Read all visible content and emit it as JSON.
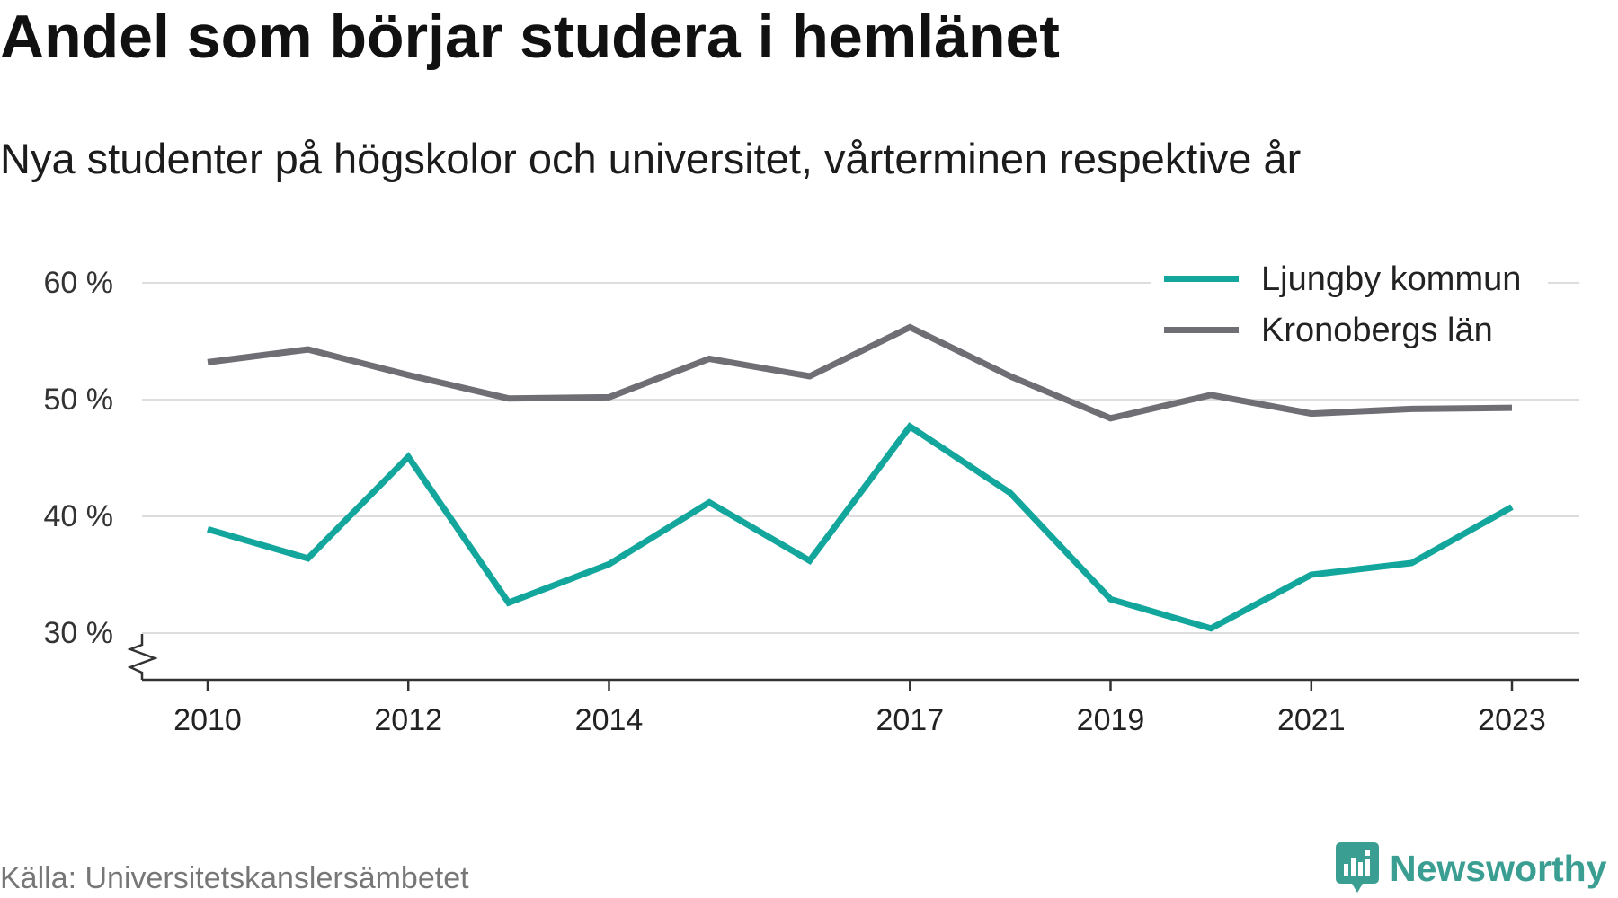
{
  "chart_data": {
    "type": "line",
    "title": "Andel som börjar studera i hemlänet",
    "subtitle": "Nya studenter på högskolor och universitet, vårterminen respektive år",
    "x": [
      2010,
      2011,
      2012,
      2013,
      2014,
      2015,
      2016,
      2017,
      2018,
      2019,
      2020,
      2021,
      2022,
      2023
    ],
    "x_ticks": [
      2010,
      2012,
      2014,
      2017,
      2019,
      2021,
      2023
    ],
    "y_ticks": [
      30,
      40,
      50,
      60
    ],
    "y_tick_labels": [
      "30 %",
      "40 %",
      "50 %",
      "60 %"
    ],
    "ylim": [
      26,
      62
    ],
    "y_axis_break": true,
    "grid": true,
    "legend_position": "top-right",
    "series": [
      {
        "name": "Ljungby kommun",
        "color": "#13a69c",
        "values": [
          38.9,
          36.4,
          45.1,
          32.6,
          35.9,
          41.2,
          36.2,
          47.7,
          42.0,
          32.9,
          30.4,
          35.0,
          36.0,
          40.8
        ]
      },
      {
        "name": "Kronobergs län",
        "color": "#6f6e75",
        "values": [
          53.2,
          54.3,
          52.1,
          50.1,
          50.2,
          53.5,
          52.0,
          56.2,
          52.0,
          48.4,
          50.4,
          48.8,
          49.2,
          49.3
        ]
      }
    ]
  },
  "source": "Källa: Universitetskanslersämbetet",
  "logo": {
    "text": "Newsworthy",
    "brand_color": "#3b9e92",
    "icon": "newsworthy-chart-bubble-icon"
  }
}
